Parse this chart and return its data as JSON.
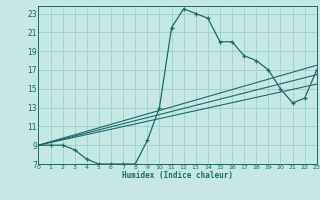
{
  "xlabel": "Humidex (Indice chaleur)",
  "bg_color": "#c5e8e5",
  "grid_color": "#9ecece",
  "line_color": "#1a6b6b",
  "xlim": [
    0,
    23
  ],
  "ylim": [
    7,
    23.8
  ],
  "xticks": [
    0,
    1,
    2,
    3,
    4,
    5,
    6,
    7,
    8,
    9,
    10,
    11,
    12,
    13,
    14,
    15,
    16,
    17,
    18,
    19,
    20,
    21,
    22,
    23
  ],
  "yticks": [
    7,
    9,
    11,
    13,
    15,
    17,
    19,
    21,
    23
  ],
  "curve_x": [
    0,
    1,
    2,
    3,
    4,
    5,
    6,
    7,
    8,
    9,
    10,
    11,
    12,
    13,
    14,
    15,
    16,
    17,
    18,
    19,
    20,
    21,
    22,
    23
  ],
  "curve_y": [
    9,
    9,
    9,
    8.5,
    7.5,
    7,
    7,
    7,
    7,
    9.5,
    13,
    21.5,
    23.5,
    23,
    22.5,
    20,
    20,
    18.5,
    18,
    17,
    15,
    13.5,
    14,
    17
  ],
  "lines": [
    {
      "x": [
        0,
        23
      ],
      "y": [
        9,
        17.5
      ]
    },
    {
      "x": [
        0,
        23
      ],
      "y": [
        9,
        16.5
      ]
    },
    {
      "x": [
        0,
        23
      ],
      "y": [
        9,
        15.5
      ]
    }
  ]
}
